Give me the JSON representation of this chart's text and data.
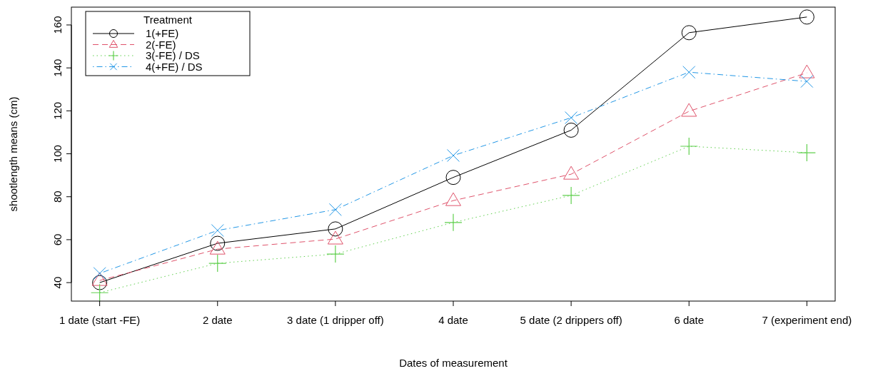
{
  "chart_data": {
    "type": "line",
    "xlabel": "Dates of measurement",
    "ylabel": "shootlength means (cm)",
    "legend_title": "Treatment",
    "legend": "top left",
    "grid": false,
    "categories": [
      "1 date (start -FE)",
      "2 date",
      "3 date (1 dripper off)",
      "4 date",
      "5 date (2 drippers off)",
      "6 date",
      "7 (experiment end)"
    ],
    "ylim": [
      31.4,
      168.3
    ],
    "yticks": [
      40,
      60,
      80,
      100,
      120,
      140,
      160
    ],
    "series": [
      {
        "name": "1(+FE)",
        "color": "#000000",
        "marker": "circle",
        "line_style": "solid",
        "values": [
          40,
          58.3,
          65,
          89,
          111,
          156.4,
          163.7
        ]
      },
      {
        "name": "2(-FE)",
        "color": "#df536b",
        "marker": "triangle",
        "line_style": "dashed",
        "values": [
          41,
          55.6,
          60.3,
          78.2,
          90.5,
          119.8,
          137.7
        ]
      },
      {
        "name": "3(-FE) / DS",
        "color": "#61d04f",
        "marker": "cross",
        "line_style": "dotted",
        "values": [
          35.3,
          49,
          53.3,
          68,
          80.6,
          103.5,
          100.5
        ]
      },
      {
        "name": "4(+FE) / DS",
        "color": "#2297e6",
        "marker": "x",
        "line_style": "dashdot",
        "values": [
          44.3,
          64.3,
          74,
          99.2,
          116.8,
          138,
          133.7
        ]
      }
    ]
  }
}
